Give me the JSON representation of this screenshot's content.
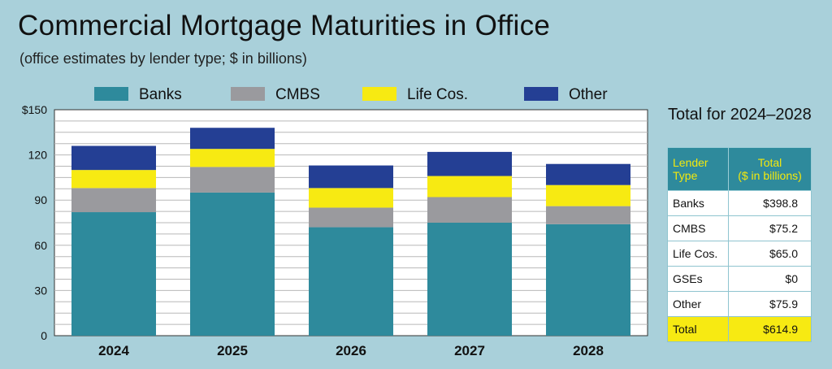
{
  "title": "Commercial Mortgage Maturities in Office",
  "subtitle": "(office estimates by lender type; $ in billions)",
  "chart_data": {
    "type": "bar",
    "stacked": true,
    "categories": [
      "2024",
      "2025",
      "2026",
      "2027",
      "2028"
    ],
    "series": [
      {
        "name": "Banks",
        "color": "#2e8a9c",
        "values": [
          82,
          95,
          72,
          75,
          74
        ]
      },
      {
        "name": "CMBS",
        "color": "#9a9a9e",
        "values": [
          16,
          17,
          13,
          17,
          12
        ]
      },
      {
        "name": "Life Cos.",
        "color": "#f7ea12",
        "values": [
          12,
          12,
          13,
          14,
          14
        ]
      },
      {
        "name": "Other",
        "color": "#243f94",
        "values": [
          16,
          14,
          15,
          16,
          14
        ]
      }
    ],
    "ylim": [
      0,
      150
    ],
    "yticks": [
      0,
      30,
      60,
      90,
      120,
      150
    ],
    "ytick_labels": [
      "0",
      "30",
      "60",
      "90",
      "120",
      "$150"
    ],
    "legend_position": "top",
    "grid": true
  },
  "table": {
    "title": "Total for 2024–2028",
    "header": {
      "col1_line1": "Lender",
      "col1_line2": "Type",
      "col2_line1": "Total",
      "col2_line2": "($ in billions)"
    },
    "rows": [
      {
        "type": "Banks",
        "total": "$398.8"
      },
      {
        "type": "CMBS",
        "total": "$75.2"
      },
      {
        "type": "Life Cos.",
        "total": "$65.0"
      },
      {
        "type": "GSEs",
        "total": "$0"
      },
      {
        "type": "Other",
        "total": "$75.9"
      }
    ],
    "total_row": {
      "type": "Total",
      "total": "$614.9"
    }
  },
  "colors": {
    "background": "#a9d0da",
    "banks": "#2e8a9c",
    "cmbs": "#9a9a9e",
    "life": "#f7ea12",
    "other": "#243f94"
  }
}
